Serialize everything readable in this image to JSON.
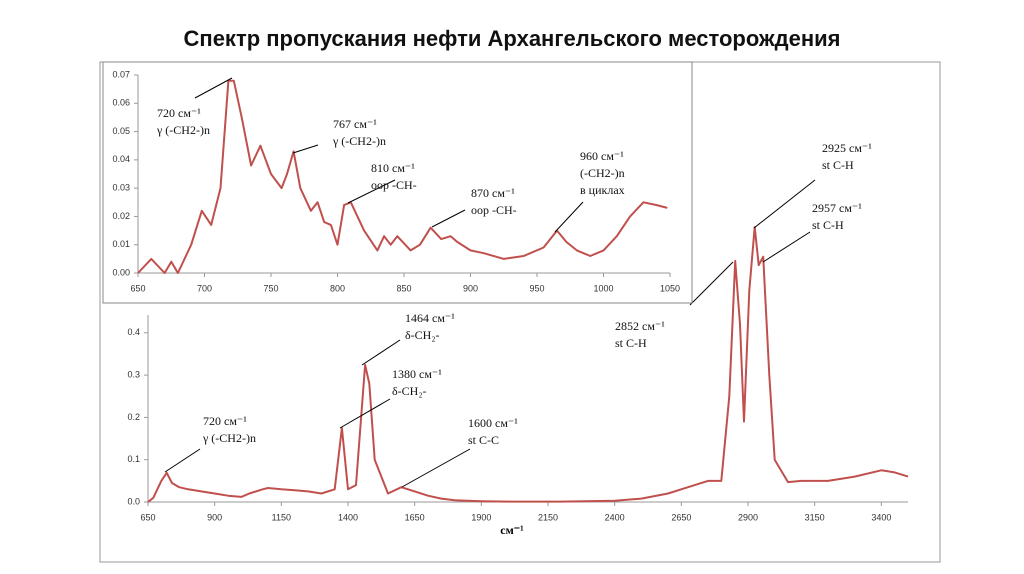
{
  "title": "Спектр пропускания нефти Архангельского месторождения",
  "chart_data": [
    {
      "type": "line",
      "color": "#c0504d",
      "xlabel": "см⁻¹",
      "xlim": [
        650,
        3500
      ],
      "ylim": [
        0,
        1.0
      ],
      "xticks": [
        650,
        900,
        1150,
        1400,
        1650,
        1900,
        2150,
        2400,
        2650,
        2900,
        3150,
        3400
      ],
      "yticks": [
        {
          "value": 0,
          "label": "0.0"
        },
        0.1,
        0.2,
        0.3,
        0.4
      ],
      "x": [
        650,
        670,
        700,
        720,
        740,
        767,
        800,
        850,
        900,
        950,
        1000,
        1030,
        1080,
        1100,
        1150,
        1200,
        1250,
        1300,
        1350,
        1377,
        1400,
        1430,
        1464,
        1480,
        1500,
        1550,
        1600,
        1650,
        1700,
        1750,
        1800,
        1900,
        2000,
        2200,
        2400,
        2500,
        2600,
        2650,
        2700,
        2750,
        2800,
        2830,
        2852,
        2870,
        2885,
        2905,
        2925,
        2940,
        2957,
        2980,
        3000,
        3050,
        3100,
        3200,
        3300,
        3400,
        3450,
        3500
      ],
      "values": [
        0.0,
        0.01,
        0.05,
        0.069,
        0.045,
        0.035,
        0.03,
        0.025,
        0.02,
        0.015,
        0.012,
        0.02,
        0.03,
        0.033,
        0.03,
        0.028,
        0.025,
        0.02,
        0.03,
        0.175,
        0.03,
        0.04,
        0.324,
        0.28,
        0.1,
        0.02,
        0.035,
        0.025,
        0.015,
        0.008,
        0.004,
        0.002,
        0.001,
        0.001,
        0.003,
        0.008,
        0.02,
        0.03,
        0.04,
        0.05,
        0.05,
        0.25,
        0.57,
        0.42,
        0.19,
        0.5,
        0.65,
        0.56,
        0.58,
        0.3,
        0.1,
        0.047,
        0.05,
        0.05,
        0.06,
        0.075,
        0.07,
        0.06
      ],
      "annotations": [
        {
          "text": [
            "720 см⁻¹",
            "γ (-CH2-)n"
          ]
        },
        {
          "text": [
            "1464 см⁻¹",
            "δ-CH₂-"
          ]
        },
        {
          "text": [
            "1380 см⁻¹",
            "δ-CH₂-"
          ]
        },
        {
          "text": [
            "1600 см⁻¹",
            "st C-C"
          ]
        },
        {
          "text": [
            "2852 см⁻¹",
            "st C-H"
          ]
        },
        {
          "text": [
            "2925 см⁻¹",
            "st C-H"
          ]
        },
        {
          "text": [
            "2957 см⁻¹",
            "st C-H"
          ]
        }
      ]
    },
    {
      "type": "line",
      "color": "#c0504d",
      "xlim": [
        650,
        1050
      ],
      "ylim": [
        0,
        0.07
      ],
      "xticks": [
        650,
        700,
        750,
        800,
        850,
        900,
        950,
        1000,
        1050
      ],
      "yticks": [
        {
          "value": 0,
          "label": "0.00"
        },
        0.01,
        0.02,
        0.03,
        0.04,
        0.05,
        0.06,
        0.07
      ],
      "x": [
        650,
        660,
        670,
        675,
        680,
        690,
        698,
        705,
        712,
        718,
        722,
        728,
        735,
        742,
        750,
        758,
        762,
        767,
        772,
        780,
        785,
        790,
        795,
        800,
        805,
        810,
        820,
        830,
        835,
        840,
        845,
        855,
        862,
        870,
        878,
        885,
        890,
        900,
        910,
        925,
        940,
        955,
        965,
        972,
        980,
        990,
        1000,
        1010,
        1020,
        1030,
        1040,
        1048
      ],
      "values": [
        0.0,
        0.005,
        0.0,
        0.004,
        0.0,
        0.01,
        0.022,
        0.017,
        0.03,
        0.068,
        0.068,
        0.055,
        0.038,
        0.045,
        0.035,
        0.03,
        0.035,
        0.043,
        0.03,
        0.022,
        0.025,
        0.018,
        0.017,
        0.01,
        0.024,
        0.025,
        0.015,
        0.008,
        0.013,
        0.01,
        0.013,
        0.008,
        0.01,
        0.016,
        0.012,
        0.013,
        0.011,
        0.008,
        0.007,
        0.005,
        0.006,
        0.009,
        0.015,
        0.011,
        0.008,
        0.006,
        0.008,
        0.013,
        0.02,
        0.025,
        0.024,
        0.023
      ],
      "annotations": [
        {
          "text": [
            "720 см⁻¹",
            "γ (-CH2-)n"
          ]
        },
        {
          "text": [
            "767 см⁻¹",
            "γ (-CH2-)n"
          ]
        },
        {
          "text": [
            "810 см⁻¹",
            "oop -CH-"
          ]
        },
        {
          "text": [
            "870 см⁻¹",
            "oop -CH-"
          ]
        },
        {
          "text": [
            "960 см⁻¹",
            "(-CH2-)n",
            "в циклах"
          ]
        }
      ]
    }
  ]
}
